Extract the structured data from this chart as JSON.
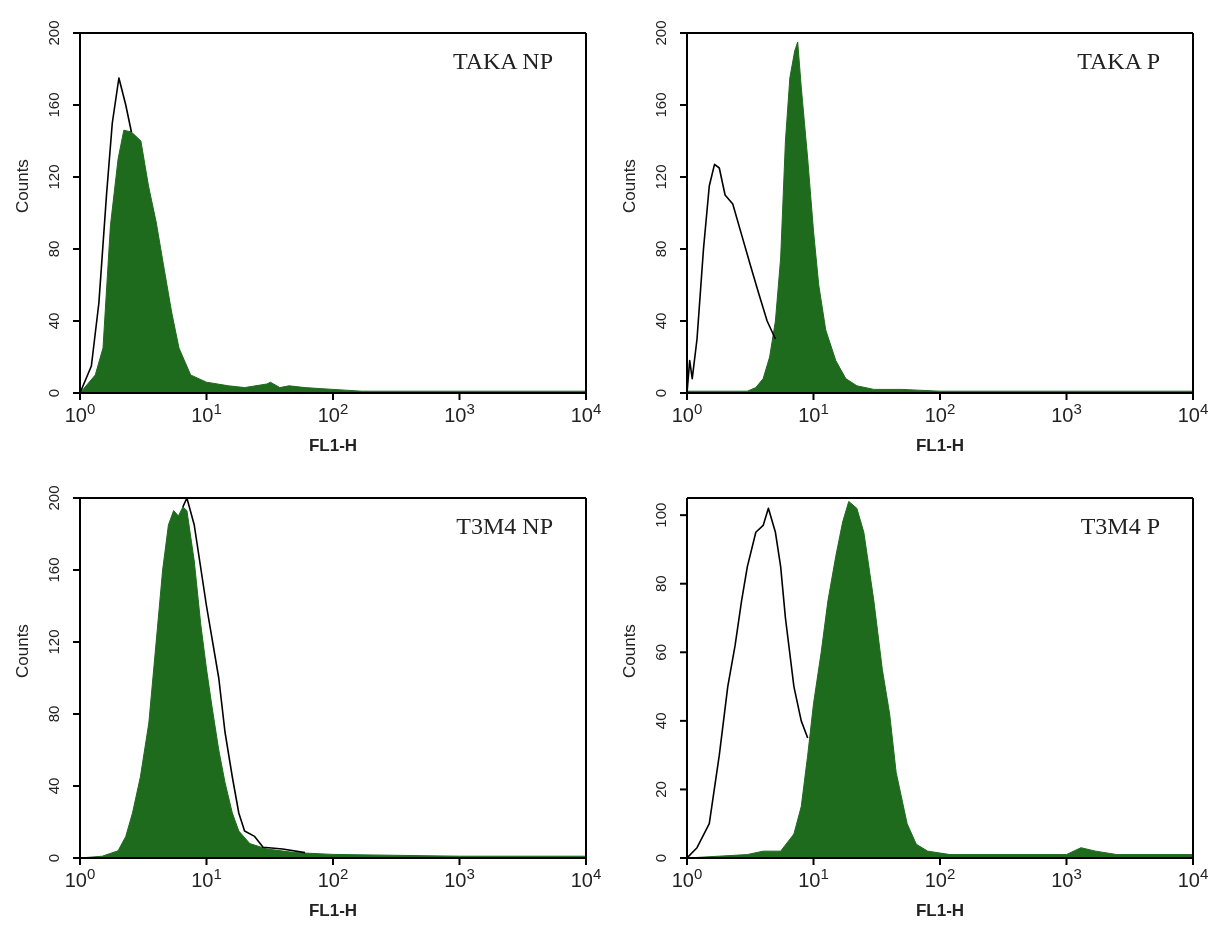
{
  "chart_data": [
    {
      "type": "area",
      "title": "TAKA NP",
      "xlabel": "FL1-H",
      "ylabel": "Counts",
      "log": "x",
      "xlim": [
        1,
        10000
      ],
      "ylim": [
        0,
        200
      ],
      "xticks": [
        {
          "value": 1,
          "label": "10$^{0}$"
        },
        {
          "value": 10,
          "label": "10$^{1}$"
        },
        {
          "value": 100,
          "label": "10$^{2}$"
        },
        {
          "value": 1000,
          "label": "10$^{3}$"
        },
        {
          "value": 10000,
          "label": "10$^{4}$"
        }
      ],
      "yticks": [
        0,
        40,
        80,
        120,
        160,
        200
      ],
      "series": [
        {
          "type": "line",
          "color": "#000000",
          "x": [
            1,
            1.23,
            1.41,
            1.62,
            1.8,
            2.03,
            2.3,
            2.55
          ],
          "values": [
            0,
            15,
            50,
            110,
            150,
            175,
            160,
            145
          ]
        },
        {
          "type": "area",
          "color": "#1e6b1e",
          "x": [
            1,
            1.32,
            1.52,
            1.74,
            2.0,
            2.22,
            2.55,
            3.03,
            3.48,
            4.0,
            4.6,
            5.3,
            6.06,
            7.5,
            10,
            14.9,
            20,
            30,
            32,
            38,
            45,
            60,
            100,
            170,
            1000,
            10000
          ],
          "values": [
            0,
            10,
            25,
            93,
            130,
            146,
            145,
            140,
            115,
            95,
            70,
            45,
            25,
            10,
            6,
            4,
            3,
            5,
            6,
            3,
            4,
            3,
            2,
            1,
            1,
            1
          ]
        }
      ]
    },
    {
      "type": "area",
      "title": "TAKA P",
      "xlabel": "FL1-H",
      "ylabel": "Counts",
      "log": "x",
      "xlim": [
        1,
        10000
      ],
      "ylim": [
        0,
        200
      ],
      "xticks": [
        {
          "value": 1,
          "label": "10$^{0}$"
        },
        {
          "value": 10,
          "label": "10$^{1}$"
        },
        {
          "value": 100,
          "label": "10$^{2}$"
        },
        {
          "value": 1000,
          "label": "10$^{3}$"
        },
        {
          "value": 10000,
          "label": "10$^{4}$"
        }
      ],
      "yticks": [
        0,
        40,
        80,
        120,
        160,
        200
      ],
      "series": [
        {
          "type": "line",
          "color": "#000000",
          "x": [
            1,
            1.05,
            1.1,
            1.2,
            1.35,
            1.5,
            1.65,
            1.8,
            2.0,
            2.3,
            2.7,
            3.2,
            3.7,
            4.3,
            5
          ],
          "values": [
            0,
            18,
            8,
            30,
            80,
            115,
            127,
            125,
            110,
            105,
            88,
            70,
            55,
            40,
            30
          ]
        },
        {
          "type": "area",
          "color": "#1e6b1e",
          "x": [
            1,
            3,
            3.5,
            4,
            4.5,
            5,
            5.5,
            6,
            6.5,
            7.1,
            7.5,
            8,
            9,
            10,
            11,
            12.5,
            15,
            18,
            22,
            30,
            50,
            100,
            1000,
            10000
          ],
          "values": [
            1,
            1,
            3,
            8,
            20,
            40,
            75,
            140,
            175,
            190,
            195,
            170,
            130,
            90,
            60,
            35,
            18,
            8,
            4,
            2,
            2,
            1,
            1,
            1
          ]
        }
      ]
    },
    {
      "type": "area",
      "title": "T3M4 NP",
      "xlabel": "FL1-H",
      "ylabel": "Counts",
      "log": "x",
      "xlim": [
        1,
        10000
      ],
      "ylim": [
        0,
        200
      ],
      "xticks": [
        {
          "value": 1,
          "label": "10$^{0}$"
        },
        {
          "value": 10,
          "label": "10$^{1}$"
        },
        {
          "value": 100,
          "label": "10$^{2}$"
        },
        {
          "value": 1000,
          "label": "10$^{3}$"
        },
        {
          "value": 10000,
          "label": "10$^{4}$"
        }
      ],
      "yticks": [
        0,
        40,
        80,
        120,
        160,
        200
      ],
      "series": [
        {
          "type": "line",
          "color": "#000000",
          "x": [
            6.5,
            7,
            8,
            10,
            12.5,
            14,
            16,
            18,
            20,
            24,
            28,
            40,
            60
          ],
          "values": [
            195,
            200,
            185,
            140,
            100,
            70,
            45,
            25,
            15,
            12,
            6,
            5,
            3
          ]
        },
        {
          "type": "area",
          "color": "#1e6b1e",
          "x": [
            1,
            1.5,
            2,
            2.3,
            2.6,
            3,
            3.5,
            4,
            4.5,
            5,
            5.5,
            6,
            6.5,
            7,
            8,
            9,
            10,
            11,
            12.5,
            14,
            16,
            18,
            22,
            30,
            50,
            100,
            1000,
            10000
          ],
          "values": [
            0,
            1,
            4,
            12,
            25,
            45,
            75,
            120,
            160,
            185,
            193,
            190,
            195,
            193,
            165,
            130,
            105,
            85,
            60,
            42,
            25,
            15,
            8,
            5,
            3,
            2,
            1,
            1
          ]
        }
      ]
    },
    {
      "type": "area",
      "title": "T3M4 P",
      "xlabel": "FL1-H",
      "ylabel": "Counts",
      "log": "x",
      "xlim": [
        1,
        10000
      ],
      "ylim": [
        0,
        105
      ],
      "xticks": [
        {
          "value": 1,
          "label": "10$^{0}$"
        },
        {
          "value": 10,
          "label": "10$^{1}$"
        },
        {
          "value": 100,
          "label": "10$^{2}$"
        },
        {
          "value": 1000,
          "label": "10$^{3}$"
        },
        {
          "value": 10000,
          "label": "10$^{4}$"
        }
      ],
      "yticks": [
        0,
        20,
        40,
        60,
        80,
        100
      ],
      "series": [
        {
          "type": "line",
          "color": "#000000",
          "x": [
            1,
            1.2,
            1.5,
            1.8,
            2.1,
            2.4,
            2.7,
            3,
            3.5,
            4,
            4.4,
            5,
            5.5,
            6,
            7,
            8,
            9
          ],
          "values": [
            0,
            3,
            10,
            30,
            50,
            62,
            75,
            85,
            95,
            97,
            102,
            95,
            85,
            70,
            50,
            40,
            35
          ]
        },
        {
          "type": "area",
          "color": "#1e6b1e",
          "x": [
            1,
            3,
            4,
            5.5,
            7,
            8,
            9,
            10,
            11.5,
            13,
            15,
            17,
            19,
            22,
            25,
            30,
            35,
            40,
            45,
            55,
            65,
            80,
            120,
            1000,
            1300,
            1700,
            2500,
            10000
          ],
          "values": [
            0,
            1,
            2,
            2,
            7,
            15,
            30,
            45,
            60,
            75,
            88,
            98,
            104,
            102,
            95,
            75,
            55,
            42,
            25,
            10,
            4,
            2,
            1,
            1,
            3,
            2,
            1,
            1
          ]
        }
      ]
    }
  ]
}
